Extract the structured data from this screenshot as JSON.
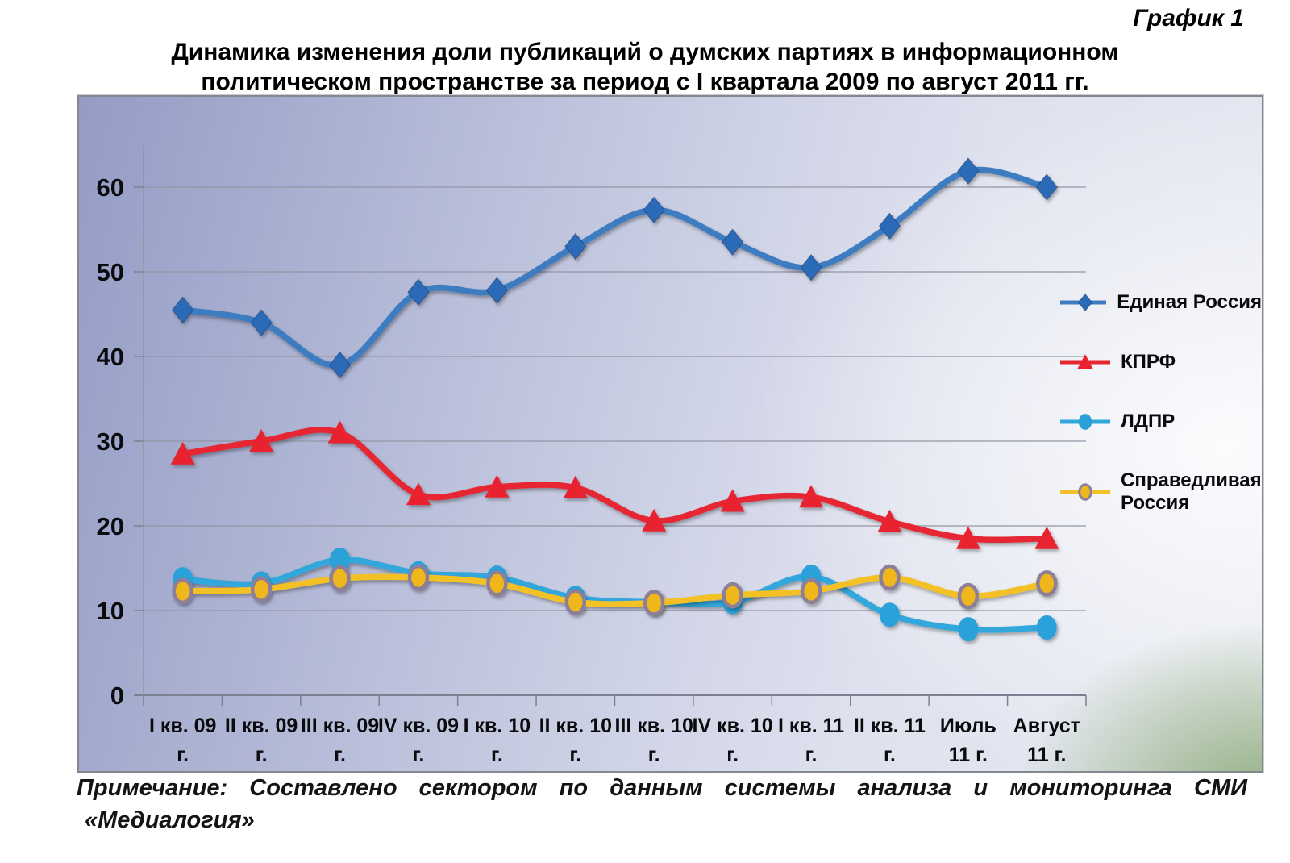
{
  "page": {
    "corner_label": "График 1",
    "title_line1": "Динамика изменения доли публикаций о думских партиях в информационном",
    "title_line2": "политическом пространстве за период с I квартала 2009 по август 2011 гг.",
    "note_line1": "Примечание: Составлено сектором по данным системы анализа и мониторинга СМИ",
    "note_line2": "«Медиалогия»"
  },
  "chart_data": {
    "type": "line",
    "title": "Динамика изменения доли публикаций о думских партиях в информационном политическом пространстве за период с I квартала 2009 по август 2011 гг.",
    "categories": [
      "I кв. 09 г.",
      "II кв. 09 г.",
      "III кв. 09 г.",
      "IV кв. 09 г.",
      "I кв. 10 г.",
      "II кв. 10 г.",
      "III кв. 10 г.",
      "IV кв. 10 г.",
      "I кв. 11 г.",
      "II кв. 11 г.",
      "Июль 11 г.",
      "Август 11 г."
    ],
    "x_tick_lines": [
      [
        "I кв. 09",
        "г."
      ],
      [
        "II кв. 09",
        "г."
      ],
      [
        "III кв. 09",
        "г."
      ],
      [
        "IV кв. 09",
        "г."
      ],
      [
        "I кв. 10",
        "г."
      ],
      [
        "II кв. 10",
        "г."
      ],
      [
        "III кв. 10",
        "г."
      ],
      [
        "IV кв. 10",
        "г."
      ],
      [
        "I кв. 11",
        "г."
      ],
      [
        "II кв. 11",
        "г."
      ],
      [
        "Июль",
        "11 г."
      ],
      [
        "Август",
        "11 г."
      ]
    ],
    "y_ticks": [
      0,
      10,
      20,
      30,
      40,
      50,
      60
    ],
    "ylim": [
      0,
      65
    ],
    "grid": true,
    "legend_position": "right",
    "series": [
      {
        "name": "Единая Россия",
        "marker": "diamond",
        "color": "#3d7cc0",
        "marker_color": "#2a6ab6",
        "values": [
          45.5,
          44.0,
          39.0,
          47.6,
          47.8,
          53.0,
          57.3,
          53.5,
          50.5,
          55.4,
          61.9,
          60.0
        ]
      },
      {
        "name": "КПРФ",
        "marker": "triangle",
        "color": "#e62732",
        "marker_color": "#e8232f",
        "values": [
          28.5,
          30.0,
          31.0,
          23.7,
          24.6,
          24.5,
          20.6,
          22.9,
          23.4,
          20.5,
          18.5,
          18.5
        ]
      },
      {
        "name": "ЛДПР",
        "marker": "circle",
        "color": "#31a7dc",
        "marker_color": "#2ba1d8",
        "values": [
          13.7,
          13.2,
          16.0,
          14.4,
          13.9,
          11.5,
          11.0,
          11.0,
          14.0,
          9.5,
          7.8,
          8.0
        ]
      },
      {
        "name": "Справедливая Россия",
        "legend_lines": [
          "Справедливая",
          "Россия"
        ],
        "marker": "ring-circle",
        "color": "#f3c026",
        "marker_color": "#efb71f",
        "marker_ring": "#8d7f97",
        "values": [
          12.3,
          12.5,
          13.8,
          13.9,
          13.2,
          11.0,
          10.9,
          11.8,
          12.3,
          13.9,
          11.7,
          13.2
        ]
      }
    ]
  }
}
